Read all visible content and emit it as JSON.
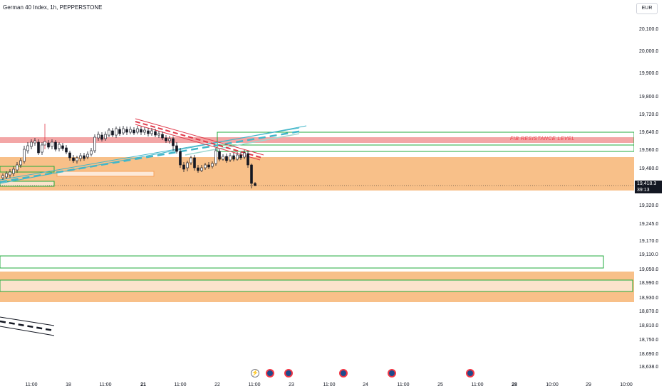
{
  "header": {
    "symbol_title": "German 40 Index, 1h, PEPPERSTONE",
    "currency": "EUR"
  },
  "annotations": {
    "fib_label": "FIB RESISTANCE LEVEL"
  },
  "current_price": {
    "price": "19,418.3",
    "countdown": "39:13"
  },
  "price_axis": [
    "20,100.0",
    "20,000.0",
    "19,900.0",
    "19,800.0",
    "19,720.0",
    "19,640.0",
    "19,560.0",
    "19,480.0",
    "19,320.0",
    "19,245.0",
    "19,170.0",
    "19,110.0",
    "19,050.0",
    "18,990.0",
    "18,930.0",
    "18,870.0",
    "18,810.0",
    "18,750.0",
    "18,690.0",
    "18,638.0"
  ],
  "time_axis": [
    {
      "label": "11:00",
      "bold": false
    },
    {
      "label": "18",
      "bold": false
    },
    {
      "label": "11:00",
      "bold": false
    },
    {
      "label": "21",
      "bold": true
    },
    {
      "label": "11:00",
      "bold": false
    },
    {
      "label": "22",
      "bold": false
    },
    {
      "label": "11:00",
      "bold": false
    },
    {
      "label": "23",
      "bold": false
    },
    {
      "label": "11:00",
      "bold": false
    },
    {
      "label": "24",
      "bold": false
    },
    {
      "label": "11:00",
      "bold": false
    },
    {
      "label": "25",
      "bold": false
    },
    {
      "label": "11:00",
      "bold": false
    },
    {
      "label": "28",
      "bold": true
    },
    {
      "label": "10:00",
      "bold": false
    },
    {
      "label": "29",
      "bold": false
    },
    {
      "label": "10:00",
      "bold": false
    }
  ],
  "events": [
    "lightning-icon",
    "flag-icon",
    "flag-icon",
    "flag-icon",
    "flag-icon",
    "flag-icon"
  ],
  "colors": {
    "bull": "#ffffff",
    "bear": "#131722",
    "zone": "#f7b97c",
    "fib": "#f3a6a6",
    "box": "#22ab3c",
    "trend": "#41b6c9",
    "resistance": "#e0394a"
  }
}
